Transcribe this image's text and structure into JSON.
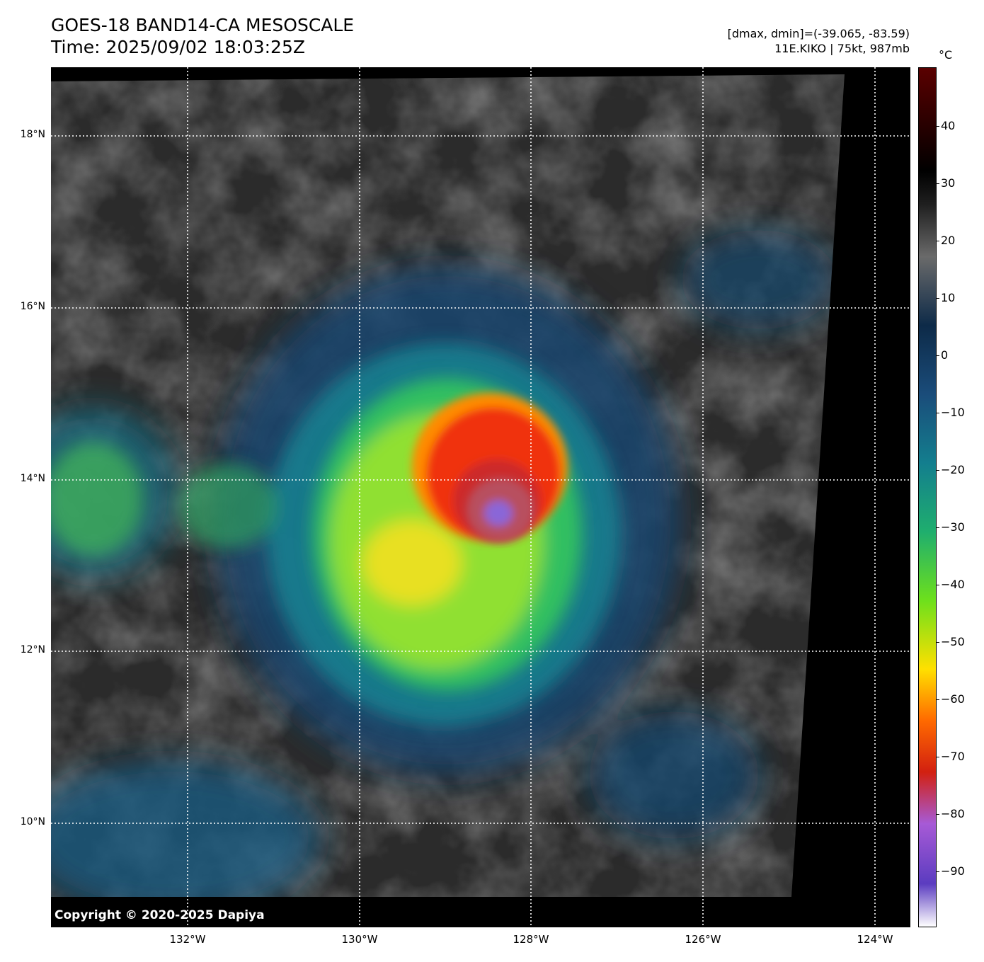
{
  "header": {
    "title_line1": "GOES-18 BAND14-CA MESOSCALE",
    "title_line2": "Time: 2025/09/02 18:03:25Z",
    "range_text": "[dmax, dmin]=(-39.065, -83.59)",
    "storm_text": "11E.KIKO | 75kt, 987mb"
  },
  "map": {
    "lat_labels": [
      "18°N",
      "16°N",
      "14°N",
      "12°N",
      "10°N"
    ],
    "lon_labels": [
      "132°W",
      "130°W",
      "128°W",
      "126°W",
      "124°W"
    ],
    "copyright": "Copyright © 2020-2025 Dapiya"
  },
  "colorbar": {
    "unit": "°C",
    "ticks": [
      "40",
      "30",
      "20",
      "10",
      "0",
      "−10",
      "−20",
      "−30",
      "−40",
      "−50",
      "−60",
      "−70",
      "−80",
      "−90"
    ],
    "colors": [
      "#ffffff",
      "#5b3cc0",
      "#a75ad6",
      "#d22010",
      "#ff6a00",
      "#ffe000",
      "#6de01c",
      "#1fae6e",
      "#137e8e",
      "#1a4c7a",
      "#0d2a48",
      "#6a6a6a",
      "#202020",
      "#000000",
      "#5a0000"
    ]
  }
}
